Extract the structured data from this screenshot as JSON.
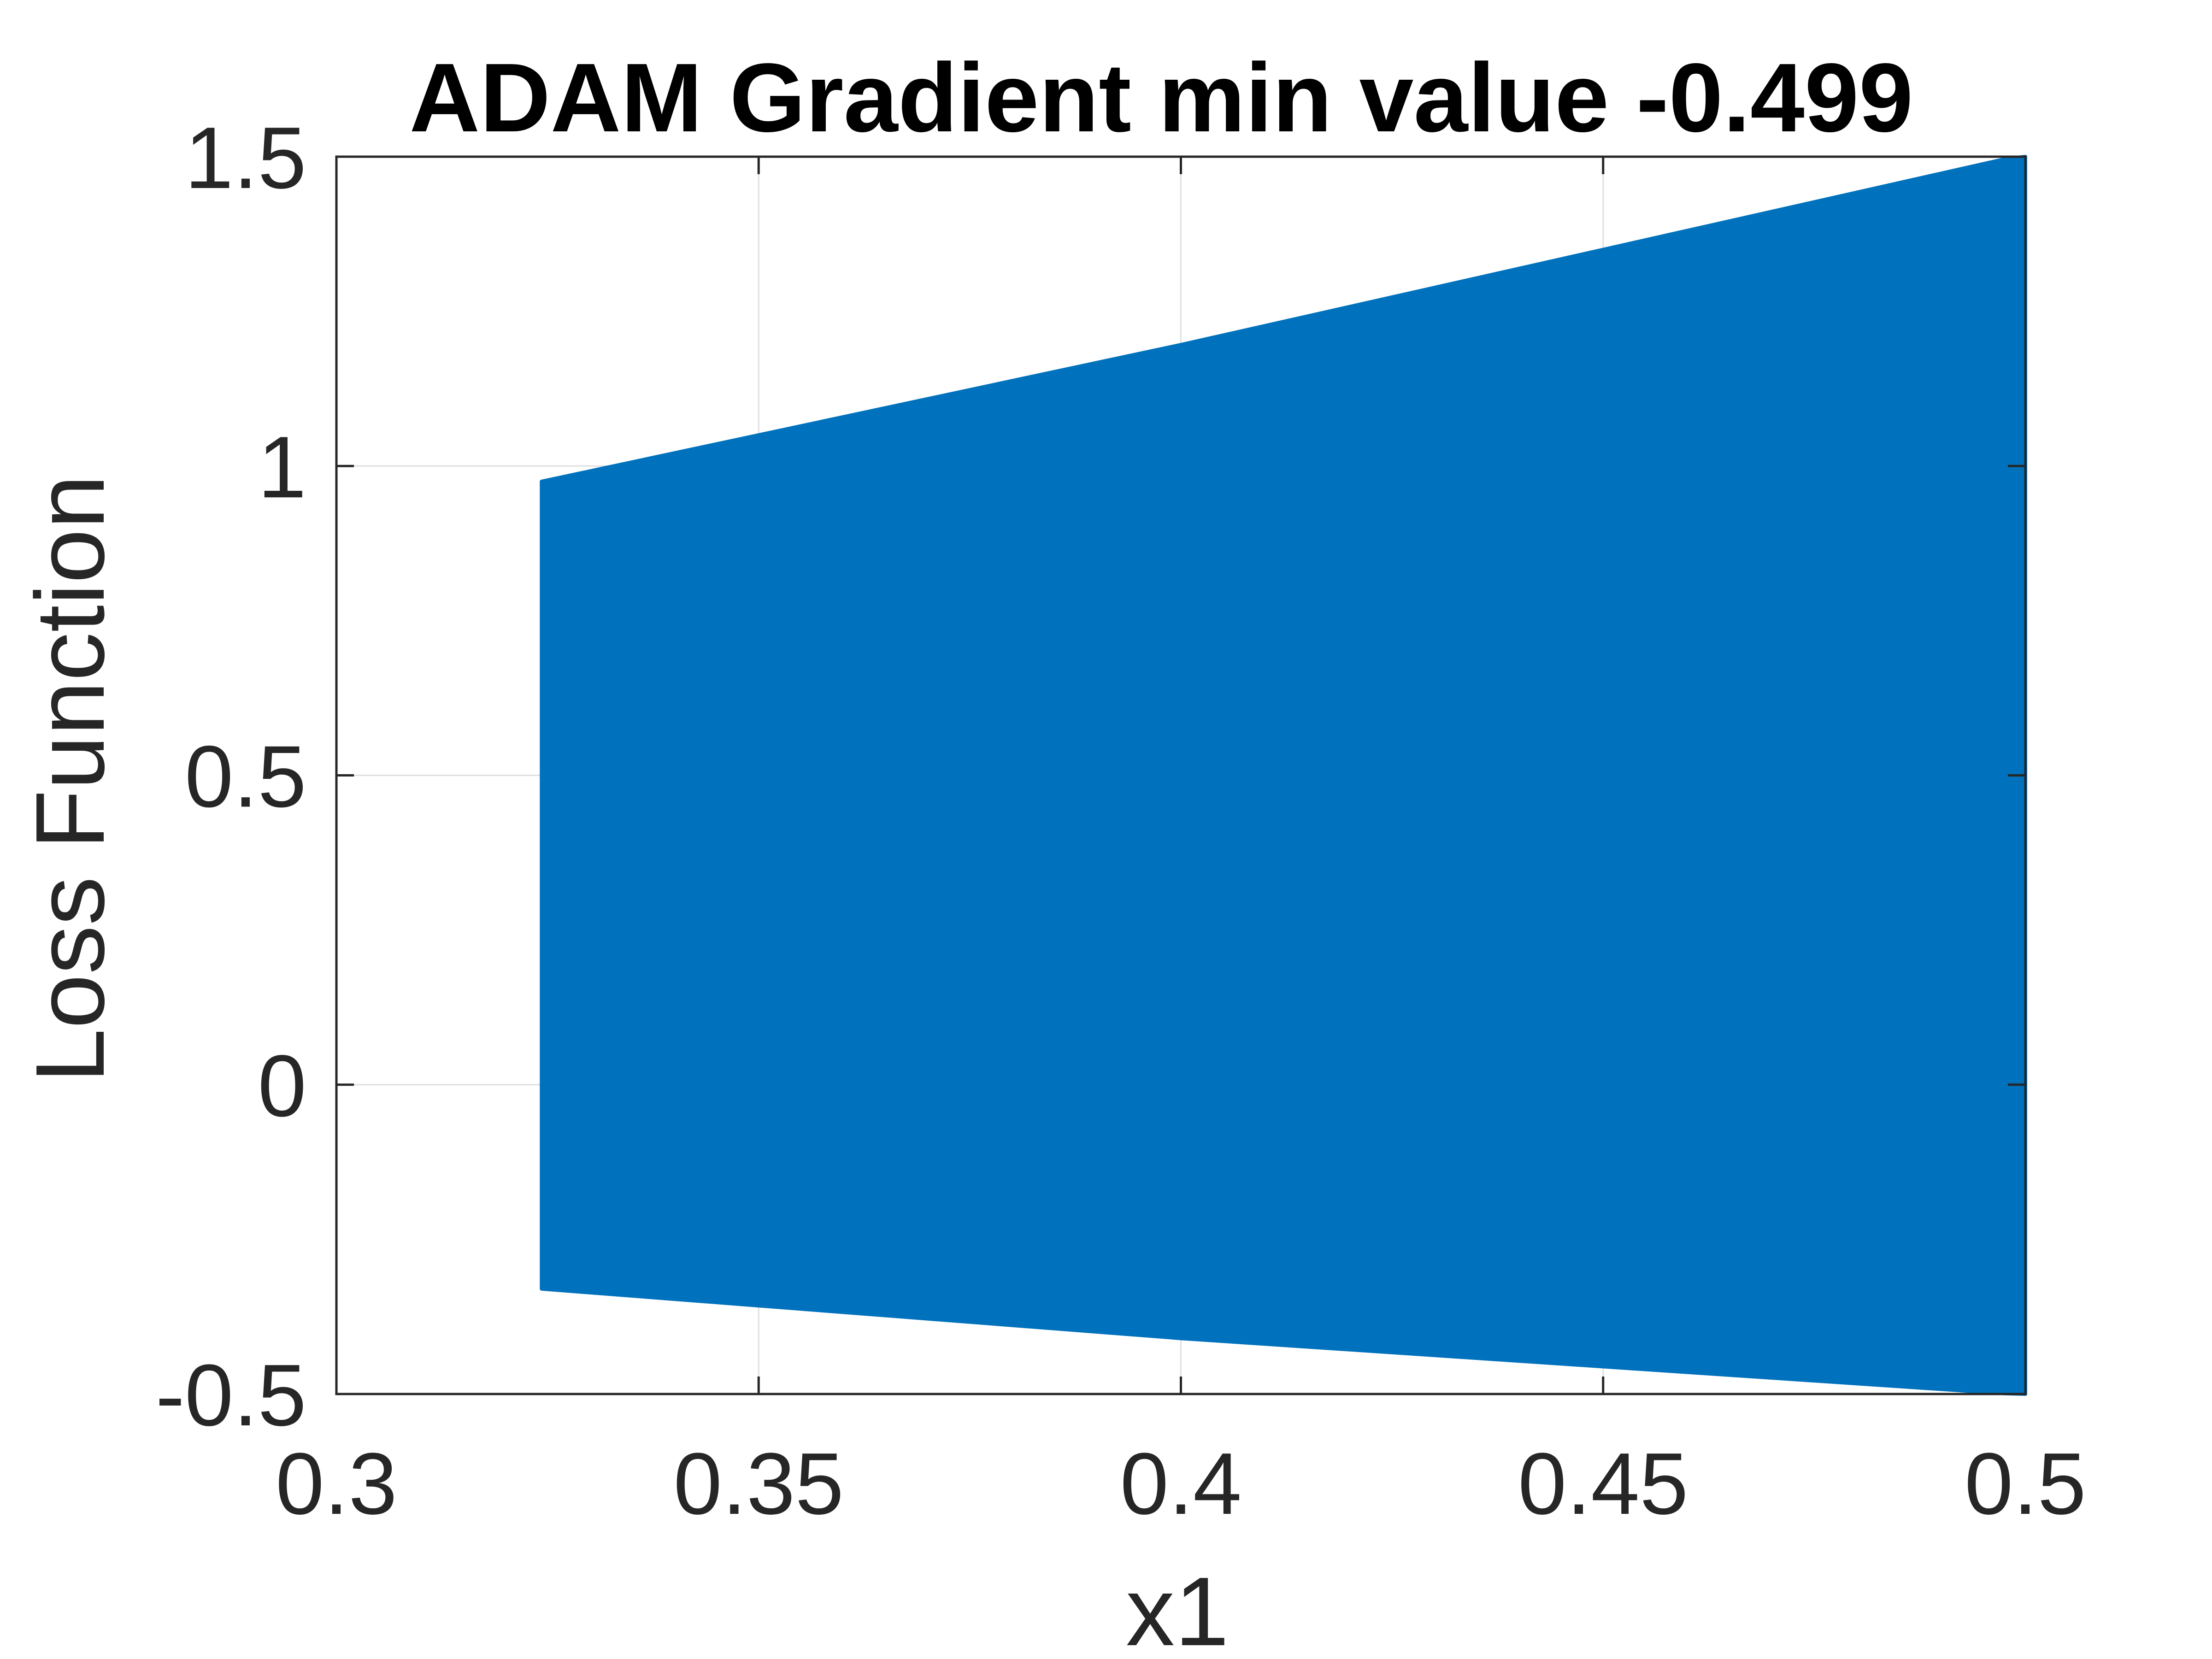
{
  "chart_data": {
    "type": "area",
    "title": "ADAM Gradient min value -0.499",
    "xlabel": "x1",
    "ylabel": "Loss Function",
    "xlim": [
      0.3,
      0.5
    ],
    "ylim": [
      -0.5,
      1.5
    ],
    "xticks": [
      "0.3",
      "0.35",
      "0.4",
      "0.45",
      "0.5"
    ],
    "yticks": [
      "-0.5",
      "0",
      "0.5",
      "1",
      "1.5"
    ],
    "xtick_values": [
      0.3,
      0.35,
      0.4,
      0.45,
      0.5
    ],
    "ytick_values": [
      -0.5,
      0,
      0.5,
      1,
      1.5
    ],
    "grid": true,
    "series": [
      {
        "upper": {
          "x": [
            0.3243,
            0.4,
            0.4975,
            0.5
          ],
          "y": [
            0.975,
            1.196,
            1.496,
            1.5
          ]
        },
        "lower": {
          "x": [
            0.3243,
            0.4,
            0.4975,
            0.5
          ],
          "y": [
            -0.33,
            -0.41,
            -0.499,
            -0.5
          ]
        }
      }
    ],
    "colors": {
      "series": "#0072BD",
      "axis": "#262626",
      "grid": "#DFDFDF"
    }
  }
}
